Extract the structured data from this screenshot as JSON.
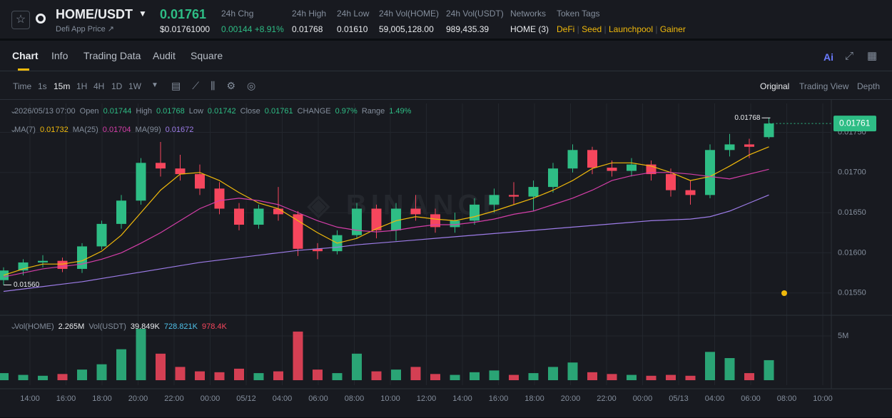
{
  "header": {
    "pair": "HOME/USDT",
    "price": "0.01761",
    "usd_price": "$0.01761000",
    "subtitle": "Defi App Price ↗",
    "stats": [
      {
        "label": "24h Chg",
        "value": "0.00144 +8.91%"
      },
      {
        "label": "24h High",
        "value": "0.01768"
      },
      {
        "label": "24h Low",
        "value": "0.01610"
      },
      {
        "label": "24h Vol(HOME)",
        "value": "59,005,128.00"
      },
      {
        "label": "24h Vol(USDT)",
        "value": "989,435.39"
      },
      {
        "label": "Networks",
        "value": "HOME (3)"
      }
    ],
    "tags_label": "Token Tags",
    "tags": [
      "DeFi",
      "Seed",
      "Launchpool",
      "Gainer"
    ]
  },
  "tabs": [
    "Chart",
    "Info",
    "Trading Data",
    "Audit",
    "Square"
  ],
  "toolbar": {
    "intervals": [
      "Time",
      "1s",
      "15m",
      "1H",
      "4H",
      "1D",
      "1W"
    ],
    "views": [
      "Original",
      "Trading View",
      "Depth"
    ]
  },
  "chart_data": {
    "type": "candlestick",
    "up_color": "#2ebd85",
    "down_color": "#f6465d",
    "legend": {
      "time": "2026/05/13 07:00",
      "open": "Open",
      "high": "High",
      "low": "Low",
      "close": "Close",
      "change": "CHANGE",
      "change_value": "0.97%",
      "range": "Range",
      "range_value": "1.49%"
    },
    "candles": {
      "open": [
        0.01566,
        0.01578,
        0.01588,
        0.0159,
        0.0158,
        0.01608,
        0.01636,
        0.01665,
        0.01712,
        0.01705,
        0.01698,
        0.0168,
        0.01655,
        0.01635,
        0.01655,
        0.01648,
        0.01605,
        0.01602,
        0.01622,
        0.01655,
        0.01628,
        0.01655,
        0.01648,
        0.01632,
        0.0164,
        0.0166,
        0.01672,
        0.0167,
        0.01682,
        0.01705,
        0.01728,
        0.01706,
        0.01702,
        0.0171,
        0.01698,
        0.01678,
        0.01672,
        0.01728,
        0.01735,
        0.01744
      ],
      "high": [
        0.01582,
        0.01592,
        0.01597,
        0.01594,
        0.01612,
        0.0164,
        0.01672,
        0.01718,
        0.01738,
        0.01722,
        0.0171,
        0.01688,
        0.01662,
        0.0166,
        0.01682,
        0.01652,
        0.01612,
        0.01628,
        0.01662,
        0.0166,
        0.01662,
        0.01672,
        0.01655,
        0.0165,
        0.01668,
        0.0168,
        0.01688,
        0.0169,
        0.01712,
        0.01735,
        0.01732,
        0.01715,
        0.01718,
        0.01715,
        0.01705,
        0.0169,
        0.01735,
        0.01748,
        0.01742,
        0.01768
      ],
      "low": [
        0.0156,
        0.01572,
        0.01582,
        0.01576,
        0.01575,
        0.01604,
        0.0163,
        0.0166,
        0.01695,
        0.0169,
        0.01672,
        0.01648,
        0.01628,
        0.0163,
        0.0164,
        0.01596,
        0.01592,
        0.01598,
        0.01618,
        0.01618,
        0.01615,
        0.0164,
        0.01625,
        0.01625,
        0.01635,
        0.0165,
        0.0166,
        0.01652,
        0.01675,
        0.017,
        0.01698,
        0.01695,
        0.01695,
        0.0169,
        0.0167,
        0.0166,
        0.01668,
        0.0172,
        0.01718,
        0.01742
      ],
      "close": [
        0.01578,
        0.01588,
        0.0159,
        0.0158,
        0.01608,
        0.01636,
        0.01665,
        0.01712,
        0.01705,
        0.01698,
        0.0168,
        0.01655,
        0.01635,
        0.01655,
        0.01648,
        0.01605,
        0.01602,
        0.01622,
        0.01655,
        0.01628,
        0.01655,
        0.01648,
        0.01632,
        0.0164,
        0.0166,
        0.01672,
        0.0167,
        0.01682,
        0.01705,
        0.01728,
        0.01706,
        0.01702,
        0.0171,
        0.01698,
        0.01678,
        0.01672,
        0.01728,
        0.01735,
        0.01732,
        0.01761
      ]
    },
    "series": [
      {
        "name": "MA(7)",
        "color": "#f0b90b",
        "values": [
          0.01572,
          0.0158,
          0.01586,
          0.01586,
          0.0159,
          0.01602,
          0.01622,
          0.0165,
          0.01678,
          0.01698,
          0.017,
          0.0169,
          0.01675,
          0.01662,
          0.01655,
          0.0164,
          0.01625,
          0.01612,
          0.01618,
          0.0163,
          0.0164,
          0.01645,
          0.01642,
          0.0164,
          0.01645,
          0.01652,
          0.0166,
          0.01668,
          0.01678,
          0.0169,
          0.01705,
          0.01712,
          0.01712,
          0.01708,
          0.017,
          0.0169,
          0.01695,
          0.01708,
          0.01722,
          0.01732
        ]
      },
      {
        "name": "MA(25)",
        "color": "#d43ea8",
        "values": [
          0.0157,
          0.01575,
          0.0158,
          0.01583,
          0.01586,
          0.01592,
          0.016,
          0.01612,
          0.01625,
          0.0164,
          0.01655,
          0.01665,
          0.01668,
          0.01665,
          0.0166,
          0.0165,
          0.0164,
          0.01632,
          0.01628,
          0.01626,
          0.01628,
          0.01632,
          0.01635,
          0.01635,
          0.01638,
          0.01642,
          0.01648,
          0.01652,
          0.0166,
          0.01668,
          0.01678,
          0.0169,
          0.01696,
          0.017,
          0.017,
          0.01698,
          0.01695,
          0.01692,
          0.01698,
          0.01704
        ]
      },
      {
        "name": "MA(99)",
        "color": "#9d7ce8",
        "values": [
          0.01552,
          0.01555,
          0.01558,
          0.01561,
          0.01564,
          0.01568,
          0.01572,
          0.01576,
          0.0158,
          0.01584,
          0.01588,
          0.01591,
          0.01594,
          0.01597,
          0.016,
          0.01603,
          0.01605,
          0.01607,
          0.0161,
          0.01612,
          0.01614,
          0.01616,
          0.01618,
          0.0162,
          0.01622,
          0.01624,
          0.01626,
          0.01628,
          0.0163,
          0.01632,
          0.01634,
          0.01636,
          0.01638,
          0.0164,
          0.01641,
          0.01642,
          0.01645,
          0.01652,
          0.01662,
          0.01672
        ]
      }
    ],
    "ylim": [
      0.01524,
      0.01786
    ],
    "yticks": [
      {
        "value": 0.0155,
        "label": "0.01550"
      },
      {
        "value": 0.016,
        "label": "0.01600"
      },
      {
        "value": 0.0165,
        "label": "0.01650"
      },
      {
        "value": 0.017,
        "label": "0.01700"
      },
      {
        "value": 0.0175,
        "label": "0.01750"
      }
    ],
    "low_marker": {
      "value": 0.0156,
      "label": "0.01560"
    },
    "xticks": [
      "14:00",
      "16:00",
      "18:00",
      "20:00",
      "22:00",
      "00:00",
      "05/12",
      "04:00",
      "06:00",
      "08:00",
      "10:00",
      "12:00",
      "14:00",
      "16:00",
      "18:00",
      "20:00",
      "22:00",
      "00:00",
      "05/13",
      "04:00",
      "06:00",
      "08:00",
      "10:00"
    ],
    "volume": {
      "name": "Vol(HOME)",
      "value_label": "2.265M",
      "usdt_name": "Vol(USDT)",
      "usdt_values": [
        "39.849K",
        "728.821K",
        "978.4K"
      ],
      "values": [
        800000,
        600000,
        500000,
        700000,
        1200000,
        1800000,
        3500000,
        5800000,
        3000000,
        1500000,
        1000000,
        900000,
        1300000,
        800000,
        1000000,
        5500000,
        1200000,
        800000,
        3000000,
        1000000,
        1200000,
        1500000,
        700000,
        600000,
        900000,
        1100000,
        600000,
        800000,
        1500000,
        2000000,
        900000,
        700000,
        600000,
        500000,
        600000,
        500000,
        3200000,
        2500000,
        800000,
        2265000
      ],
      "ylim": [
        0,
        7100000
      ],
      "yticks": [
        {
          "value": 5000000,
          "label": "5M"
        }
      ]
    }
  }
}
